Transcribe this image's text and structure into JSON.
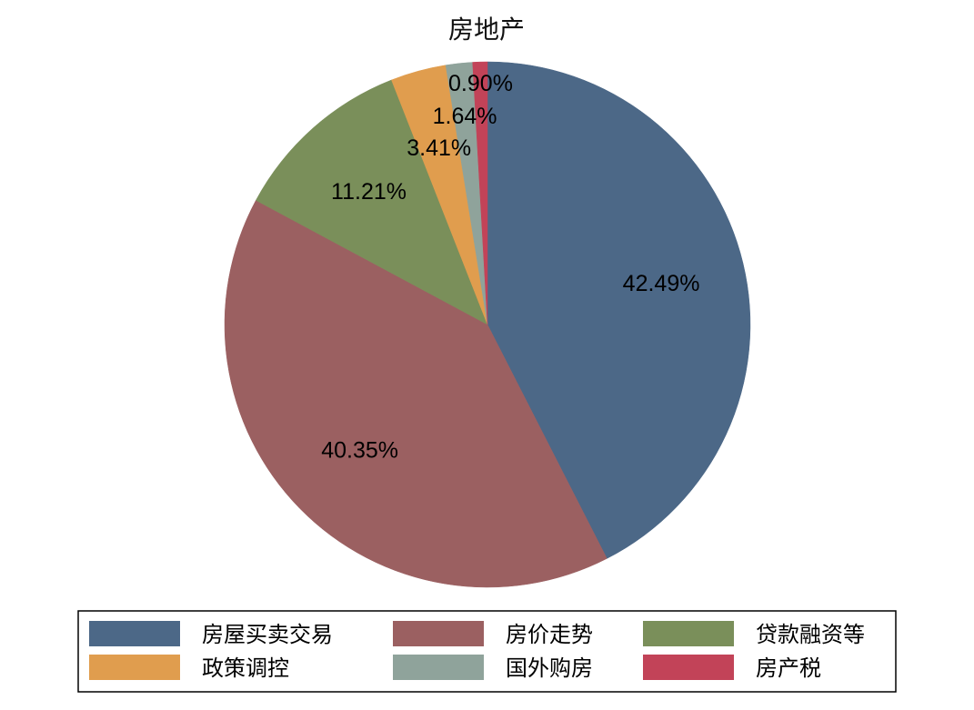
{
  "chart_data": {
    "type": "pie",
    "title": "房地产",
    "slices": [
      {
        "label": "房屋买卖交易",
        "value": 42.49,
        "display": "42.49%",
        "color": "#4c6887"
      },
      {
        "label": "房价走势",
        "value": 40.35,
        "display": "40.35%",
        "color": "#9b6061"
      },
      {
        "label": "贷款融资等",
        "value": 11.21,
        "display": "11.21%",
        "color": "#7a8f5a"
      },
      {
        "label": "政策调控",
        "value": 3.41,
        "display": "3.41%",
        "color": "#e09d4e"
      },
      {
        "label": "国外购房",
        "value": 1.64,
        "display": "1.64%",
        "color": "#8fa39b"
      },
      {
        "label": "房产税",
        "value": 0.9,
        "display": "0.90%",
        "color": "#c24358"
      }
    ],
    "start_angle": "12 o'clock",
    "direction": "clockwise",
    "legend_placement": "bottom"
  }
}
